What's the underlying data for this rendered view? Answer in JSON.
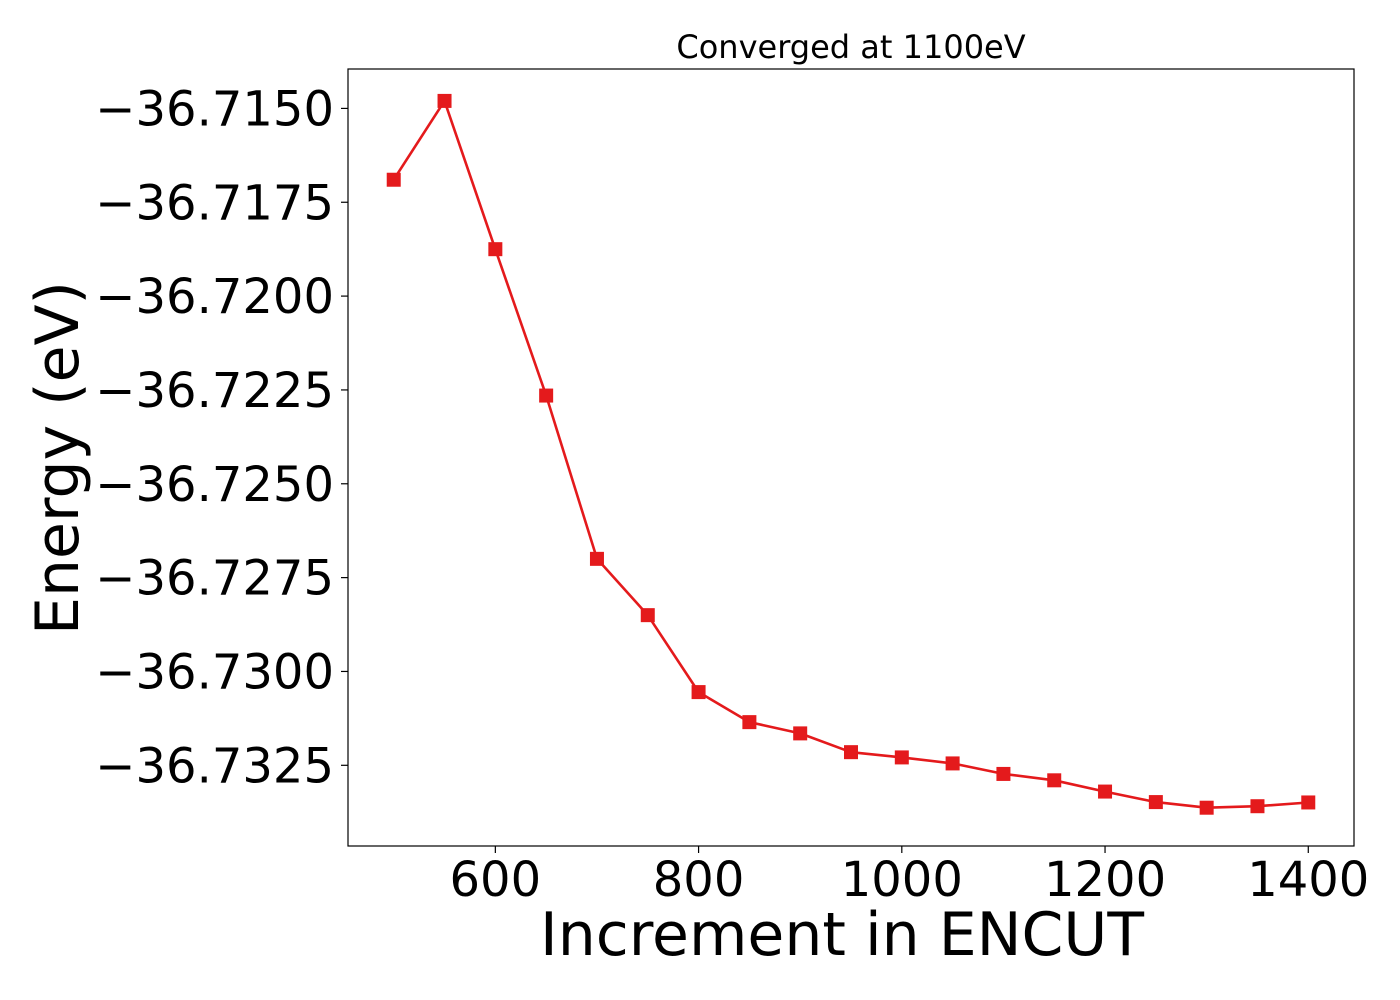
{
  "chart_data": {
    "type": "line",
    "title": "Converged at 1100eV",
    "xlabel": "Increment in ENCUT",
    "ylabel": "Energy (eV)",
    "xlim": [
      455,
      1445
    ],
    "ylim": [
      -36.73465,
      -36.71395
    ],
    "x_ticks": [
      600,
      800,
      1000,
      1200,
      1400
    ],
    "x_tick_labels": [
      "600",
      "800",
      "1000",
      "1200",
      "1400"
    ],
    "y_ticks": [
      -36.715,
      -36.7175,
      -36.72,
      -36.7225,
      -36.725,
      -36.7275,
      -36.73,
      -36.7325
    ],
    "y_tick_labels": [
      "−36.7150",
      "−36.7175",
      "−36.7200",
      "−36.7225",
      "−36.7250",
      "−36.7275",
      "−36.7300",
      "−36.7325"
    ],
    "grid": false,
    "legend": "none",
    "series": [
      {
        "color": "#e41a1c",
        "marker": "square",
        "x": [
          500,
          550,
          600,
          650,
          700,
          750,
          800,
          850,
          900,
          950,
          1000,
          1050,
          1100,
          1150,
          1200,
          1250,
          1300,
          1350,
          1400
        ],
        "y": [
          -36.7169,
          -36.7148,
          -36.71875,
          -36.72265,
          -36.727,
          -36.7285,
          -36.73055,
          -36.73135,
          -36.73165,
          -36.73215,
          -36.73229,
          -36.73245,
          -36.73273,
          -36.7329,
          -36.7332,
          -36.73348,
          -36.73363,
          -36.73359,
          -36.73349
        ]
      }
    ]
  }
}
